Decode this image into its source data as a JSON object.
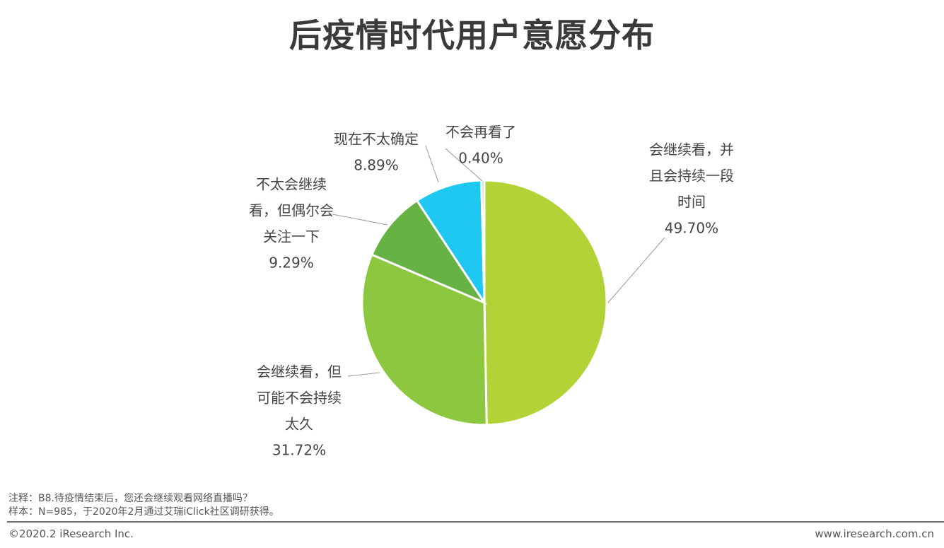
{
  "title": "后疫情时代用户意愿分布",
  "chart_data": {
    "type": "pie",
    "slices": [
      {
        "label_lines": [
          "会继续看，并",
          "且会持续一段",
          "时间"
        ],
        "value_label": "49.70%",
        "value": 49.7,
        "color": "#b2d235"
      },
      {
        "label_lines": [
          "会继续看，但",
          "可能不会持续",
          "太久"
        ],
        "value_label": "31.72%",
        "value": 31.72,
        "color": "#8dc63f"
      },
      {
        "label_lines": [
          "不太会继续",
          "看，但偶尔会",
          "关注一下"
        ],
        "value_label": "9.29%",
        "value": 9.29,
        "color": "#67b245"
      },
      {
        "label_lines": [
          "现在不太确定"
        ],
        "value_label": "8.89%",
        "value": 8.89,
        "color": "#1ec8f0"
      },
      {
        "label_lines": [
          "不会再看了"
        ],
        "value_label": "0.40%",
        "value": 0.4,
        "color": "#a8d4e8"
      }
    ]
  },
  "notes": {
    "note1": "注释：B8.待疫情结束后，您还会继续观看网络直播吗？",
    "note2": "样本：N=985，于2020年2月通过艾瑞iClick社区调研获得。"
  },
  "footer": {
    "copyright": "©2020.2 iResearch Inc.",
    "website": "www.iresearch.com.cn"
  }
}
